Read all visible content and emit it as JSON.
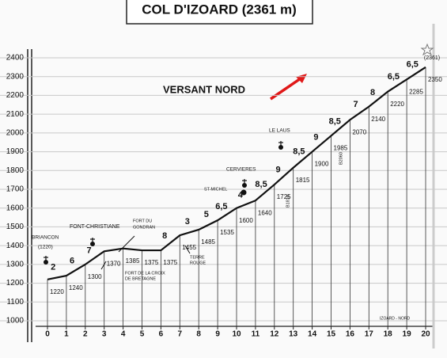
{
  "chart_data": {
    "type": "line",
    "title": "COL D'IZOARD (2361 m)",
    "subtitle": "VERSANT NORD",
    "x": [
      0,
      1,
      2,
      3,
      4,
      5,
      6,
      7,
      8,
      9,
      10,
      11,
      12,
      13,
      14,
      15,
      16,
      17,
      18,
      19,
      20
    ],
    "values": [
      1220,
      1240,
      1300,
      1370,
      1385,
      1375,
      1375,
      1455,
      1485,
      1535,
      1600,
      1640,
      1725,
      1815,
      1900,
      1985,
      2070,
      2140,
      2220,
      2285,
      2350
    ],
    "color": "#111111",
    "xlim": [
      0,
      20
    ],
    "xticks": [
      0,
      1,
      2,
      3,
      4,
      5,
      6,
      7,
      8,
      9,
      10,
      11,
      12,
      13,
      14,
      15,
      16,
      17,
      18,
      19,
      20
    ],
    "ylim": [
      1000,
      2400
    ],
    "yticks": [
      1000,
      1100,
      1200,
      1300,
      1400,
      1500,
      1600,
      1700,
      1800,
      1900,
      2000,
      2100,
      2200,
      2300,
      2400
    ],
    "grid": true,
    "gradients": [
      "2",
      "6",
      "7",
      "8",
      "3",
      "5",
      "6,5",
      "4",
      "8,5",
      "9",
      "8,5",
      "9",
      "8,5",
      "7",
      "8",
      "6,5",
      "6,5"
    ],
    "annotations": [
      "BRIANCON",
      "(1220)",
      "FONT-CHRISTIANE",
      "FORT DU",
      "GONDRAN",
      "FORT DE LA CROIX",
      "DE BRETAGNE",
      "TERRE",
      "ROUGE",
      "ST-MICHEL",
      "CERVIERES",
      "LE LAUS",
      "B1810",
      "B2060",
      "(2361)",
      "IZOARD - NORD"
    ]
  }
}
